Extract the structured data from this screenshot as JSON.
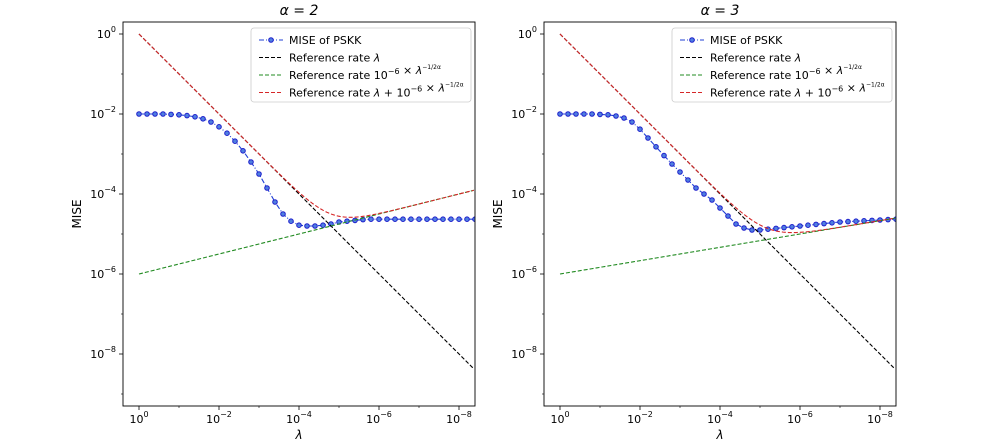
{
  "chart_data": [
    {
      "type": "line",
      "title": "α = 2",
      "xlabel": "λ",
      "ylabel": "MISE",
      "xscale": "log-reversed",
      "yscale": "log",
      "xlim_exp": [
        0.4,
        -8.4
      ],
      "ylim_exp": [
        -9.3,
        0.3
      ],
      "xticks": [
        "10^0",
        "10^-2",
        "10^-4",
        "10^-6",
        "10^-8"
      ],
      "yticks": [
        "10^0",
        "10^-2",
        "10^-4",
        "10^-6",
        "10^-8"
      ],
      "legend_position": "top-right",
      "series": [
        {
          "name": "MISE of PSKK",
          "style": "dashdot-markers",
          "color": "#1f3fd6",
          "log10_lambda": [
            0,
            -0.2,
            -0.4,
            -0.6,
            -0.8,
            -1.0,
            -1.2,
            -1.4,
            -1.6,
            -1.8,
            -2.0,
            -2.2,
            -2.4,
            -2.6,
            -2.8,
            -3.0,
            -3.2,
            -3.4,
            -3.6,
            -3.8,
            -4.0,
            -4.2,
            -4.4,
            -4.6,
            -4.8,
            -5.0,
            -5.2,
            -5.4,
            -5.6,
            -5.8,
            -6.0,
            -6.2,
            -6.4,
            -6.6,
            -6.8,
            -7.0,
            -7.2,
            -7.4,
            -7.6,
            -7.8,
            -8.0,
            -8.2,
            -8.4
          ],
          "log10_mise": [
            -2.0,
            -2.0,
            -2.0,
            -2.0,
            -2.01,
            -2.02,
            -2.04,
            -2.07,
            -2.12,
            -2.2,
            -2.32,
            -2.48,
            -2.68,
            -2.92,
            -3.2,
            -3.5,
            -3.85,
            -4.2,
            -4.5,
            -4.68,
            -4.78,
            -4.8,
            -4.8,
            -4.78,
            -4.75,
            -4.7,
            -4.68,
            -4.66,
            -4.64,
            -4.63,
            -4.63,
            -4.63,
            -4.63,
            -4.63,
            -4.63,
            -4.63,
            -4.63,
            -4.63,
            -4.63,
            -4.63,
            -4.63,
            -4.63,
            -4.63
          ]
        },
        {
          "name": "Reference rate λ",
          "style": "dashed",
          "color": "#000000",
          "log10_lambda_range": [
            0,
            -9.3
          ],
          "formula": "λ"
        },
        {
          "name": "Reference rate 10^{-6} × λ^{-1/(2α)}",
          "style": "dashed",
          "color": "#228b22",
          "log10_lambda_range": [
            0,
            -9.3
          ],
          "formula": "1e-6 · λ^(-1/(2α))"
        },
        {
          "name": "Reference rate λ + 10^{-6} × λ^{-1/(2α)}",
          "style": "dashed",
          "color": "#d62728",
          "log10_lambda_range": [
            0,
            -9.3
          ],
          "formula": "λ + 1e-6 · λ^(-1/(2α))"
        }
      ]
    },
    {
      "type": "line",
      "title": "α = 3",
      "xlabel": "λ",
      "ylabel": "MISE",
      "xscale": "log-reversed",
      "yscale": "log",
      "xlim_exp": [
        0.4,
        -8.4
      ],
      "ylim_exp": [
        -9.3,
        0.3
      ],
      "xticks": [
        "10^0",
        "10^-2",
        "10^-4",
        "10^-6",
        "10^-8"
      ],
      "yticks": [
        "10^0",
        "10^-2",
        "10^-4",
        "10^-6",
        "10^-8"
      ],
      "legend_position": "top-right",
      "series": [
        {
          "name": "MISE of PSKK",
          "style": "dashdot-markers",
          "color": "#1f3fd6",
          "log10_lambda": [
            0,
            -0.2,
            -0.4,
            -0.6,
            -0.8,
            -1.0,
            -1.2,
            -1.4,
            -1.6,
            -1.8,
            -2.0,
            -2.2,
            -2.4,
            -2.6,
            -2.8,
            -3.0,
            -3.2,
            -3.4,
            -3.6,
            -3.8,
            -4.0,
            -4.2,
            -4.4,
            -4.6,
            -4.8,
            -5.0,
            -5.2,
            -5.4,
            -5.6,
            -5.8,
            -6.0,
            -6.2,
            -6.4,
            -6.6,
            -6.8,
            -7.0,
            -7.2,
            -7.4,
            -7.6,
            -7.8,
            -8.0,
            -8.2,
            -8.4
          ],
          "log10_mise": [
            -2.0,
            -2.0,
            -2.0,
            -2.0,
            -2.0,
            -2.01,
            -2.02,
            -2.05,
            -2.1,
            -2.2,
            -2.38,
            -2.6,
            -2.82,
            -3.04,
            -3.25,
            -3.45,
            -3.65,
            -3.85,
            -4.0,
            -4.15,
            -4.35,
            -4.55,
            -4.75,
            -4.85,
            -4.9,
            -4.9,
            -4.88,
            -4.86,
            -4.84,
            -4.82,
            -4.8,
            -4.78,
            -4.76,
            -4.74,
            -4.72,
            -4.7,
            -4.69,
            -4.68,
            -4.67,
            -4.66,
            -4.65,
            -4.64,
            -4.63
          ]
        },
        {
          "name": "Reference rate λ",
          "style": "dashed",
          "color": "#000000",
          "log10_lambda_range": [
            0,
            -9.3
          ],
          "formula": "λ"
        },
        {
          "name": "Reference rate 10^{-6} × λ^{-1/(2α)}",
          "style": "dashed",
          "color": "#228b22",
          "log10_lambda_range": [
            0,
            -9.3
          ],
          "formula": "1e-6 · λ^(-1/(2α))"
        },
        {
          "name": "Reference rate λ + 10^{-6} × λ^{-1/(2α)}",
          "style": "dashed",
          "color": "#d62728",
          "log10_lambda_range": [
            0,
            -9.3
          ],
          "formula": "λ + 1e-6 · λ^(-1/(2α))"
        }
      ]
    }
  ]
}
